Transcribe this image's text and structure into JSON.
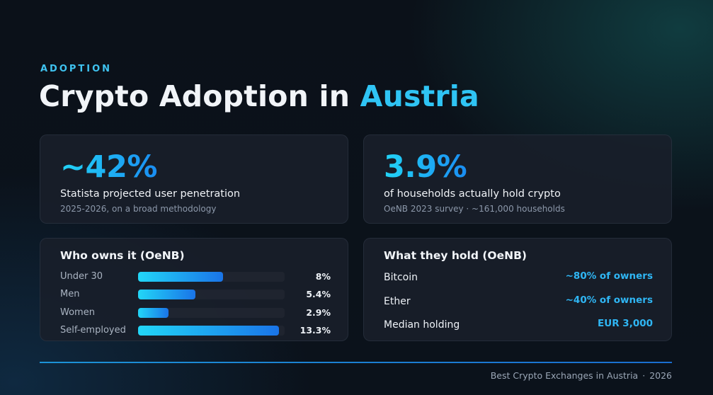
{
  "header": {
    "eyebrow": "ADOPTION",
    "title_main": "Crypto Adoption in",
    "title_accent": "Austria"
  },
  "stats": [
    {
      "value": "~42%",
      "label": "Statista projected user penetration",
      "sub": "2025-2026, on a broad methodology"
    },
    {
      "value": "3.9%",
      "label": "of households actually hold crypto",
      "sub": "OeNB 2023 survey · ~161,000 households"
    }
  ],
  "owners": {
    "title": "Who owns it (OeNB)",
    "rows": [
      {
        "label": "Under 30",
        "value": "8%",
        "fill": 0.58
      },
      {
        "label": "Men",
        "value": "5.4%",
        "fill": 0.39
      },
      {
        "label": "Women",
        "value": "2.9%",
        "fill": 0.21
      },
      {
        "label": "Self-employed",
        "value": "13.3%",
        "fill": 0.96
      }
    ]
  },
  "holdings": {
    "title": "What they hold (OeNB)",
    "rows": [
      {
        "label": "Bitcoin",
        "value": "~80% of owners"
      },
      {
        "label": "Ether",
        "value": "~40% of owners"
      },
      {
        "label": "Median holding",
        "value": "EUR 3,000"
      }
    ]
  },
  "footer": {
    "source": "Best Crypto Exchanges in Austria",
    "year": "2026"
  },
  "colors": {
    "accent": "#2fc4f4",
    "accent_dark": "#1a74e8",
    "background": "#0b1119",
    "card": "#191f2a"
  }
}
